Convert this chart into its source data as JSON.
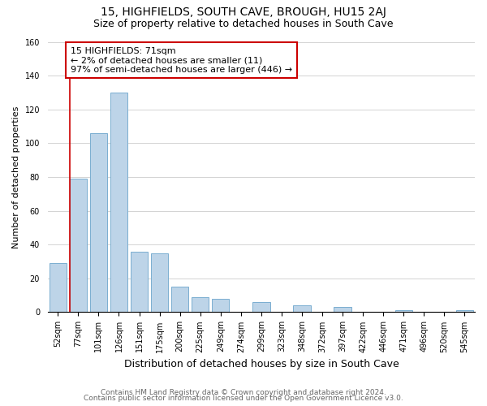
{
  "title": "15, HIGHFIELDS, SOUTH CAVE, BROUGH, HU15 2AJ",
  "subtitle": "Size of property relative to detached houses in South Cave",
  "xlabel": "Distribution of detached houses by size in South Cave",
  "ylabel": "Number of detached properties",
  "bar_labels": [
    "52sqm",
    "77sqm",
    "101sqm",
    "126sqm",
    "151sqm",
    "175sqm",
    "200sqm",
    "225sqm",
    "249sqm",
    "274sqm",
    "299sqm",
    "323sqm",
    "348sqm",
    "372sqm",
    "397sqm",
    "422sqm",
    "446sqm",
    "471sqm",
    "496sqm",
    "520sqm",
    "545sqm"
  ],
  "bar_heights": [
    29,
    79,
    106,
    130,
    36,
    35,
    15,
    9,
    8,
    0,
    6,
    0,
    4,
    0,
    3,
    0,
    0,
    1,
    0,
    0,
    1
  ],
  "bar_color": "#bdd4e8",
  "bar_edge_color": "#7aaed0",
  "highlight_line_color": "#cc0000",
  "annotation_line1": "15 HIGHFIELDS: 71sqm",
  "annotation_line2": "← 2% of detached houses are smaller (11)",
  "annotation_line3": "97% of semi-detached houses are larger (446) →",
  "annotation_box_color": "#ffffff",
  "annotation_box_edge_color": "#cc0000",
  "ylim": [
    0,
    160
  ],
  "yticks": [
    0,
    20,
    40,
    60,
    80,
    100,
    120,
    140,
    160
  ],
  "footer_line1": "Contains HM Land Registry data © Crown copyright and database right 2024.",
  "footer_line2": "Contains public sector information licensed under the Open Government Licence v3.0.",
  "bg_color": "#ffffff",
  "grid_color": "#cccccc",
  "title_fontsize": 10,
  "subtitle_fontsize": 9,
  "ylabel_fontsize": 8,
  "xlabel_fontsize": 9,
  "tick_fontsize": 7,
  "annotation_fontsize": 8,
  "footer_fontsize": 6.5
}
